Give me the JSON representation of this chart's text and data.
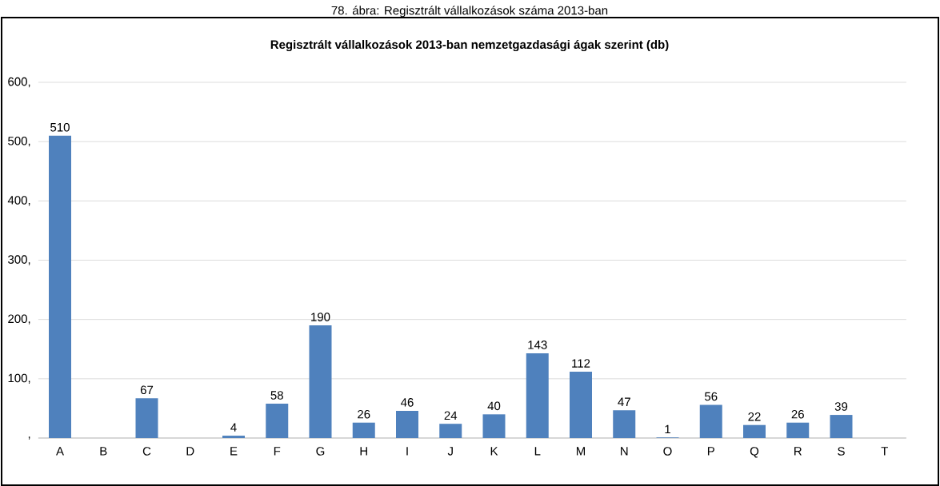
{
  "chart_data": {
    "type": "bar",
    "title": "Regisztrált vállalkozások 2013-ban nemzetgazdasági ágak szerint (db)",
    "annotations": [
      "78. ábra: Regisztrált vállalkozások száma 2013-ban"
    ],
    "categories": [
      "A",
      "B",
      "C",
      "D",
      "E",
      "F",
      "G",
      "H",
      "I",
      "J",
      "K",
      "L",
      "M",
      "N",
      "O",
      "P",
      "Q",
      "R",
      "S",
      "T"
    ],
    "values": [
      510,
      null,
      67,
      null,
      4,
      58,
      190,
      26,
      46,
      24,
      40,
      143,
      112,
      47,
      1,
      56,
      22,
      26,
      39,
      null
    ],
    "color": "#4f81bd",
    "data_labels": true,
    "grid": "y",
    "ylim": [
      0,
      600
    ],
    "yticks": [
      {
        "value": 0,
        "label": ","
      },
      {
        "value": 100,
        "label": "100,"
      },
      {
        "value": 200,
        "label": "200,"
      },
      {
        "value": 300,
        "label": "300,"
      },
      {
        "value": 400,
        "label": "400,"
      },
      {
        "value": 500,
        "label": "500,"
      },
      {
        "value": 600,
        "label": "600,"
      }
    ]
  }
}
